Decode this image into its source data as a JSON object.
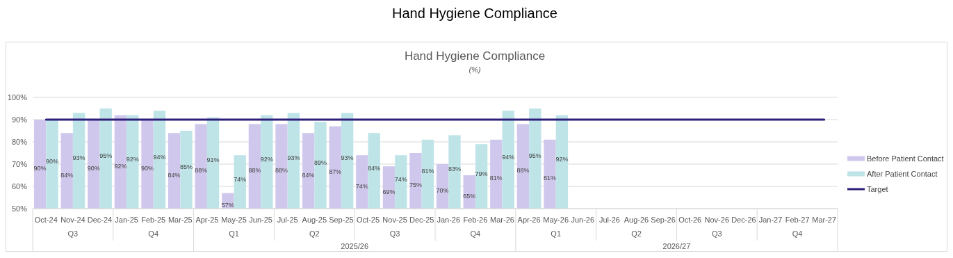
{
  "chart_data": {
    "type": "bar",
    "title": "Hand Hygiene Compliance",
    "subtitle": "(%)",
    "categories": [
      "Oct-24",
      "Nov-24",
      "Dec-24",
      "Jan-25",
      "Feb-25",
      "Mar-25",
      "Apr-25",
      "May-25",
      "Jun-25",
      "Jul-25",
      "Aug-25",
      "Sep-25",
      "Oct-25",
      "Nov-25",
      "Dec-25",
      "Jan-26",
      "Feb-26",
      "Mar-26",
      "Apr-26",
      "May-26",
      "Jun-26",
      "Jul-26",
      "Aug-26",
      "Sep-26",
      "Oct-26",
      "Nov-26",
      "Dec-26",
      "Jan-27",
      "Feb-27",
      "Mar-27"
    ],
    "series": [
      {
        "name": "Before Patient Contact",
        "color": "#d0c8ec",
        "values": [
          90,
          84,
          90,
          92,
          90,
          84,
          88,
          57,
          88,
          88,
          84,
          87,
          74,
          69,
          75,
          70,
          65,
          81,
          88,
          81,
          null,
          null,
          null,
          null,
          null,
          null,
          null,
          null,
          null,
          null
        ],
        "value_labels": [
          "90%",
          "84%",
          "90%",
          "92%",
          "90%",
          "84%",
          "88%",
          "57%",
          "88%",
          "88%",
          "84%",
          "87%",
          "74%",
          "69%",
          "75%",
          "70%",
          "65%",
          "81%",
          "88%",
          "81%",
          null,
          null,
          null,
          null,
          null,
          null,
          null,
          null,
          null,
          null
        ]
      },
      {
        "name": "After Patient Contact",
        "color": "#bfe4e8",
        "values": [
          90,
          93,
          95,
          92,
          94,
          85,
          91,
          74,
          92,
          93,
          89,
          93,
          84,
          74,
          81,
          83,
          79,
          94,
          95,
          92,
          null,
          null,
          null,
          null,
          null,
          null,
          null,
          null,
          null,
          null
        ],
        "value_labels": [
          "90%",
          "93%",
          "95%",
          "92%",
          "94%",
          "85%",
          "91%",
          "74%",
          "92%",
          "93%",
          "89%",
          "93%",
          "84%",
          "74%",
          "81%",
          "83%",
          "79%",
          "94%",
          "95%",
          "92%",
          null,
          null,
          null,
          null,
          null,
          null,
          null,
          null,
          null,
          null
        ]
      },
      {
        "name": "Target",
        "type": "line",
        "color": "#2e1f7a",
        "values": [
          90,
          90,
          90,
          90,
          90,
          90,
          90,
          90,
          90,
          90,
          90,
          90,
          90,
          90,
          90,
          90,
          90,
          90,
          90,
          90,
          90,
          90,
          90,
          90,
          90,
          90,
          90,
          90,
          90,
          90
        ]
      }
    ],
    "ylim": [
      50,
      100
    ],
    "yticks": [
      {
        "value": 50,
        "label": "50%"
      },
      {
        "value": 60,
        "label": "60%"
      },
      {
        "value": 70,
        "label": "70%"
      },
      {
        "value": 80,
        "label": "80%"
      },
      {
        "value": 90,
        "label": "90%"
      },
      {
        "value": 100,
        "label": "100%"
      }
    ],
    "grid": "y",
    "legend": "right",
    "marker": "none",
    "line_style": "solid",
    "annotations": [
      "Hand Hygiene Compliance",
      "Q3",
      "Q4",
      "Q1",
      "Q2",
      "Q3",
      "Q4",
      "Q1",
      "Q2",
      "Q3",
      "Q4",
      "2025/26",
      "2026/27"
    ]
  }
}
